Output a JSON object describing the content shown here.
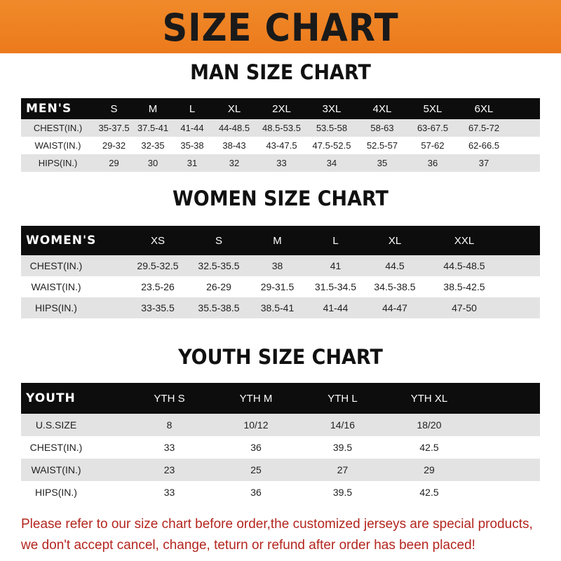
{
  "banner_title": "SIZE CHART",
  "men": {
    "title": "MAN SIZE CHART",
    "header": [
      "MEN'S",
      "S",
      "M",
      "L",
      "XL",
      "2XL",
      "3XL",
      "4XL",
      "5XL",
      "6XL"
    ],
    "rows": [
      [
        "CHEST(IN.)",
        "35-37.5",
        "37.5-41",
        "41-44",
        "44-48.5",
        "48.5-53.5",
        "53.5-58",
        "58-63",
        "63-67.5",
        "67.5-72"
      ],
      [
        "WAIST(IN.)",
        "29-32",
        "32-35",
        "35-38",
        "38-43",
        "43-47.5",
        "47.5-52.5",
        "52.5-57",
        "57-62",
        "62-66.5"
      ],
      [
        "HIPS(IN.)",
        "29",
        "30",
        "31",
        "32",
        "33",
        "34",
        "35",
        "36",
        "37"
      ]
    ]
  },
  "women": {
    "title": "WOMEN SIZE CHART",
    "header": [
      "WOMEN'S",
      "XS",
      "S",
      "M",
      "L",
      "XL",
      "XXL"
    ],
    "rows": [
      [
        "CHEST(IN.)",
        "29.5-32.5",
        "32.5-35.5",
        "38",
        "41",
        "44.5",
        "44.5-48.5"
      ],
      [
        "WAIST(IN.)",
        "23.5-26",
        "26-29",
        "29-31.5",
        "31.5-34.5",
        "34.5-38.5",
        "38.5-42.5"
      ],
      [
        "HIPS(IN.)",
        "33-35.5",
        "35.5-38.5",
        "38.5-41",
        "41-44",
        "44-47",
        "47-50"
      ]
    ]
  },
  "youth": {
    "title": "YOUTH SIZE CHART",
    "header": [
      "YOUTH",
      "YTH S",
      "YTH M",
      "YTH L",
      "YTH XL"
    ],
    "rows": [
      [
        "U.S.SIZE",
        "8",
        "10/12",
        "14/16",
        "18/20"
      ],
      [
        "CHEST(IN.)",
        "33",
        "36",
        "39.5",
        "42.5"
      ],
      [
        "WAIST(IN.)",
        "23",
        "25",
        "27",
        "29"
      ],
      [
        "HIPS(IN.)",
        "33",
        "36",
        "39.5",
        "42.5"
      ]
    ]
  },
  "notice": {
    "line1": "Please refer to our size chart before order,the customized jerseys are special products,",
    "line2": "we don't accept cancel, change, teturn or refund after order has been placed!"
  },
  "colors": {
    "banner": "#ef8326",
    "header_row": "#0d0d0d",
    "notice": "#b3261e",
    "stripe": "#e3e3e3"
  }
}
